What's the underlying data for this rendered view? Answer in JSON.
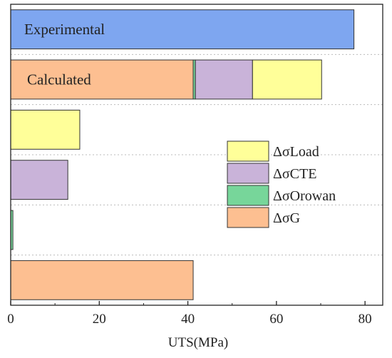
{
  "chart_data": {
    "type": "bar",
    "orientation": "horizontal",
    "stacked": true,
    "xlabel": "UTS(MPa)",
    "ylabel": "",
    "xlim": [
      0,
      84
    ],
    "xticks": [
      0,
      20,
      40,
      60,
      80
    ],
    "grid": "horizontal dotted separators",
    "legend_position": "middle-right",
    "bars": [
      {
        "label": "Experimental",
        "segments": [
          {
            "component": "total",
            "value": 77.5
          }
        ]
      },
      {
        "label": "Calculated",
        "segments": [
          {
            "component": "ΔσG",
            "value": 41.2
          },
          {
            "component": "ΔσOrowan",
            "value": 0.5
          },
          {
            "component": "ΔσCTE",
            "value": 12.9
          },
          {
            "component": "ΔσLoad",
            "value": 15.6
          }
        ]
      },
      {
        "label": "",
        "segments": [
          {
            "component": "ΔσLoad",
            "value": 15.6
          }
        ]
      },
      {
        "label": "",
        "segments": [
          {
            "component": "ΔσCTE",
            "value": 12.9
          }
        ]
      },
      {
        "label": "",
        "segments": [
          {
            "component": "ΔσOrowan",
            "value": 0.5
          }
        ]
      },
      {
        "label": "",
        "segments": [
          {
            "component": "ΔσG",
            "value": 41.2
          }
        ]
      }
    ],
    "legend": [
      {
        "name": "ΔσLoad",
        "color": "#ffff99"
      },
      {
        "name": "ΔσCTE",
        "color": "#c9b3d9"
      },
      {
        "name": "ΔσOrowan",
        "color": "#77d69a"
      },
      {
        "name": "ΔσG",
        "color": "#fdbf91"
      }
    ],
    "colors": {
      "total": "#7ea6f0",
      "ΔσG": "#fdbf91",
      "ΔσOrowan": "#77d69a",
      "ΔσCTE": "#c9b3d9",
      "ΔσLoad": "#ffff99"
    }
  }
}
